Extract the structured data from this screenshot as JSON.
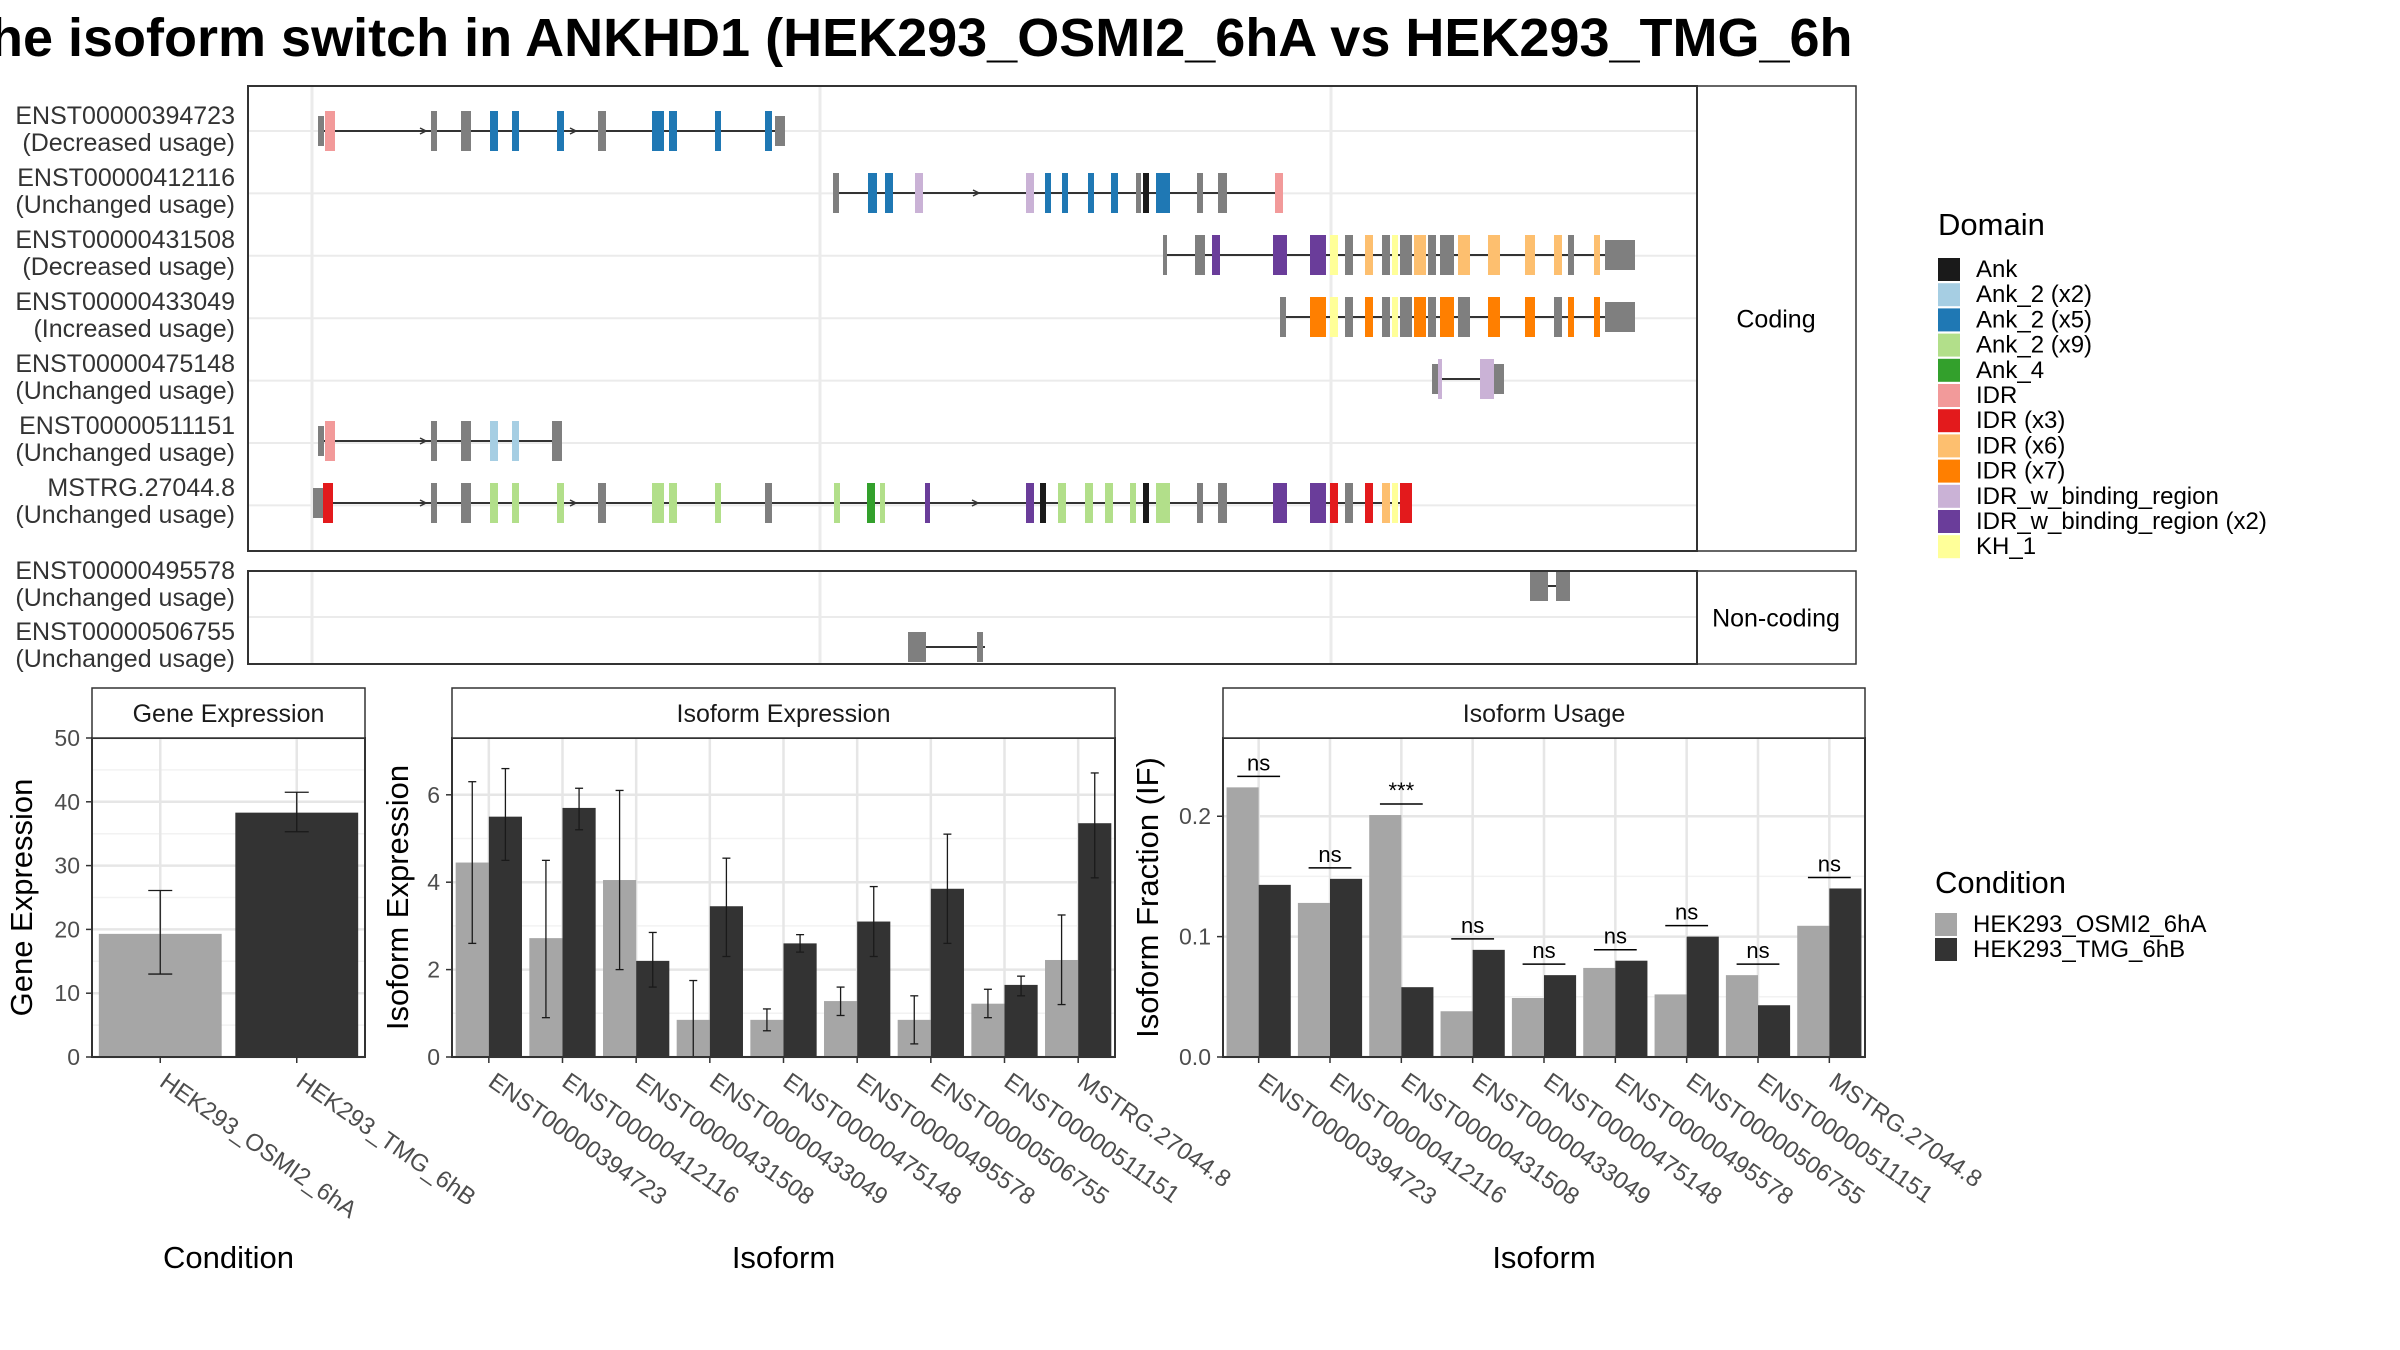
{
  "title": "he isoform switch in ANKHD1 (HEK293_OSMI2_6hA vs HEK293_TMG_6h",
  "structure": {
    "coding_label": "Coding",
    "noncoding_label": "Non-coding",
    "coding": [
      {
        "id": "ENST00000394723",
        "usage": "(Decreased usage)"
      },
      {
        "id": "ENST00000412116",
        "usage": "(Unchanged usage)"
      },
      {
        "id": "ENST00000431508",
        "usage": "(Decreased usage)"
      },
      {
        "id": "ENST00000433049",
        "usage": "(Increased usage)"
      },
      {
        "id": "ENST00000475148",
        "usage": "(Unchanged usage)"
      },
      {
        "id": "ENST00000511151",
        "usage": "(Unchanged usage)"
      },
      {
        "id": "MSTRG.27044.8",
        "usage": "(Unchanged usage)"
      }
    ],
    "noncoding": [
      {
        "id": "ENST00000495578",
        "usage": "(Unchanged usage)"
      },
      {
        "id": "ENST00000506755",
        "usage": "(Unchanged usage)"
      }
    ]
  },
  "domain_legend": {
    "title": "Domain",
    "items": [
      {
        "label": "Ank",
        "color": "#1a1a1a"
      },
      {
        "label": "Ank_2 (x2)",
        "color": "#a6cee3"
      },
      {
        "label": "Ank_2 (x5)",
        "color": "#1f78b4"
      },
      {
        "label": "Ank_2 (x9)",
        "color": "#b2df8a"
      },
      {
        "label": "Ank_4",
        "color": "#33a02c"
      },
      {
        "label": "IDR",
        "color": "#f29a9a"
      },
      {
        "label": "IDR (x3)",
        "color": "#e31a1c"
      },
      {
        "label": "IDR (x6)",
        "color": "#fdbf6f"
      },
      {
        "label": "IDR (x7)",
        "color": "#ff7f00"
      },
      {
        "label": "IDR_w_binding_region",
        "color": "#cab2d6"
      },
      {
        "label": "IDR_w_binding_region (x2)",
        "color": "#6a3d9a"
      },
      {
        "label": "KH_1",
        "color": "#ffff99"
      }
    ]
  },
  "condition_legend": {
    "title": "Condition",
    "items": [
      {
        "label": "HEK293_OSMI2_6hA",
        "color": "#a6a6a6"
      },
      {
        "label": "HEK293_TMG_6hB",
        "color": "#333333"
      }
    ]
  },
  "chart_data": [
    {
      "type": "bar",
      "title": "Gene Expression",
      "xlabel": "Condition",
      "ylabel": "Gene Expression",
      "ylim": [
        0,
        50
      ],
      "yticks": [
        0,
        10,
        20,
        30,
        40,
        50
      ],
      "categories": [
        "HEK293_OSMI2_6hA",
        "HEK293_TMG_6hB"
      ],
      "values": [
        19.3,
        38.3
      ],
      "err_low": [
        13.0,
        35.3
      ],
      "err_high": [
        26.1,
        41.5
      ]
    },
    {
      "type": "bar",
      "title": "Isoform Expression",
      "xlabel": "Isoform",
      "ylabel": "Isoform Expression",
      "ylim": [
        0,
        7.3
      ],
      "yticks": [
        0,
        2,
        4,
        6
      ],
      "categories": [
        "ENST00000394723",
        "ENST00000412116",
        "ENST00000431508",
        "ENST00000433049",
        "ENST00000475148",
        "ENST00000495578",
        "ENST00000506755",
        "ENST00000511151",
        "MSTRG.27044.8"
      ],
      "series": [
        {
          "name": "HEK293_OSMI2_6hA",
          "values": [
            4.45,
            2.72,
            4.05,
            0.85,
            0.85,
            1.28,
            0.85,
            1.22,
            2.22
          ],
          "err_low": [
            2.6,
            0.9,
            2.0,
            0.0,
            0.6,
            0.95,
            0.3,
            0.9,
            1.2
          ],
          "err_high": [
            6.3,
            4.5,
            6.1,
            1.75,
            1.1,
            1.6,
            1.4,
            1.55,
            3.25
          ]
        },
        {
          "name": "HEK293_TMG_6hB",
          "values": [
            5.5,
            5.7,
            2.2,
            3.45,
            2.6,
            3.1,
            3.85,
            1.65,
            5.35
          ],
          "err_low": [
            4.5,
            5.2,
            1.6,
            2.3,
            2.4,
            2.3,
            2.6,
            1.4,
            4.1
          ],
          "err_high": [
            6.6,
            6.15,
            2.85,
            4.55,
            2.8,
            3.9,
            5.1,
            1.85,
            6.5
          ]
        }
      ]
    },
    {
      "type": "bar",
      "title": "Isoform Usage",
      "xlabel": "Isoform",
      "ylabel": "Isoform Fraction (IF)",
      "ylim": [
        0,
        0.265
      ],
      "yticks": [
        0.0,
        0.1,
        0.2
      ],
      "categories": [
        "ENST00000394723",
        "ENST00000412116",
        "ENST00000431508",
        "ENST00000433049",
        "ENST00000475148",
        "ENST00000495578",
        "ENST00000506755",
        "ENST00000511151",
        "MSTRG.27044.8"
      ],
      "series": [
        {
          "name": "HEK293_OSMI2_6hA",
          "values": [
            0.224,
            0.128,
            0.201,
            0.038,
            0.049,
            0.074,
            0.052,
            0.068,
            0.109
          ]
        },
        {
          "name": "HEK293_TMG_6hB",
          "values": [
            0.143,
            0.148,
            0.058,
            0.089,
            0.068,
            0.08,
            0.1,
            0.043,
            0.14
          ]
        }
      ],
      "significance": [
        "ns",
        "ns",
        "***",
        "ns",
        "ns",
        "ns",
        "ns",
        "ns",
        "ns"
      ]
    }
  ]
}
